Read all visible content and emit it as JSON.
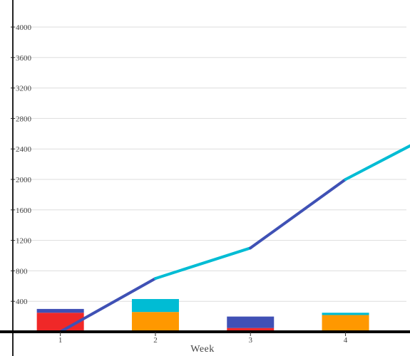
{
  "chart_data": {
    "type": "bar+line",
    "title": "",
    "xlabel": "Week",
    "ylabel": "",
    "ylim": [
      0,
      4400
    ],
    "yticks": [
      400,
      800,
      1200,
      1600,
      2000,
      2400,
      2800,
      3200,
      3600,
      4000
    ],
    "grid": true,
    "categories": [
      "1",
      "2",
      "3",
      "4"
    ],
    "bar_stacks": [
      [
        {
          "value": 250,
          "color": "#f02828"
        },
        {
          "value": 50,
          "color": "#4050b5"
        }
      ],
      [
        {
          "value": 260,
          "color": "#ff9800"
        },
        {
          "value": 170,
          "color": "#00bcd4"
        }
      ],
      [
        {
          "value": 50,
          "color": "#f02828"
        },
        {
          "value": 150,
          "color": "#4050b5"
        }
      ],
      [
        {
          "value": 220,
          "color": "#ff9800"
        },
        {
          "value": 30,
          "color": "#00bcd4"
        }
      ]
    ],
    "line": {
      "x": [
        0.5,
        1.5,
        2.5,
        3.5,
        4.5
      ],
      "y": [
        0,
        700,
        1100,
        2000,
        2650
      ],
      "segment_colors": [
        "#3f51b5",
        "#00bcd4",
        "#3f51b5",
        "#00bcd4"
      ]
    }
  }
}
